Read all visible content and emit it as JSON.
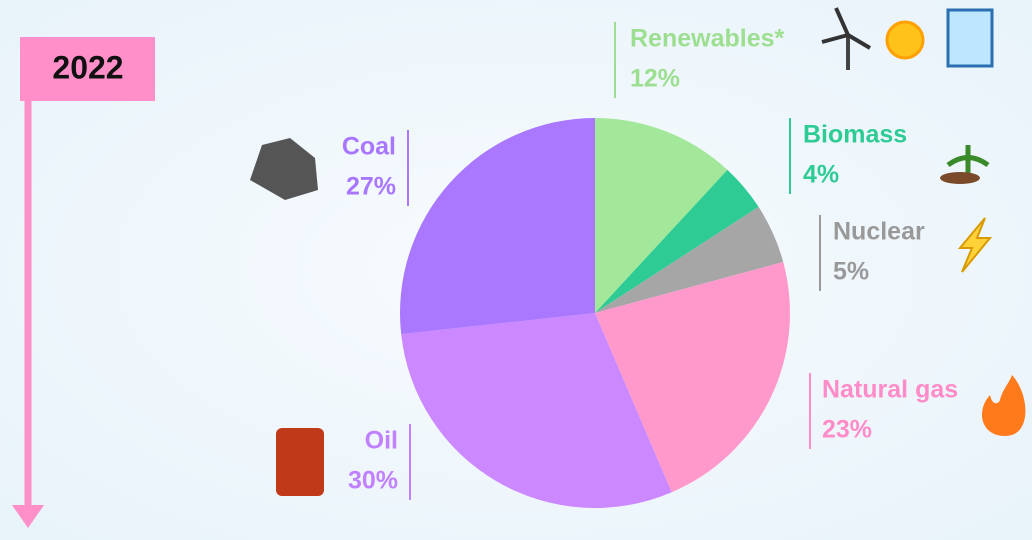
{
  "chart_data": {
    "type": "pie",
    "title": "2022",
    "categories": [
      "Renewables*",
      "Biomass",
      "Nuclear",
      "Natural gas",
      "Oil",
      "Coal"
    ],
    "values": [
      12,
      4,
      5,
      23,
      30,
      27
    ],
    "value_labels": [
      "12%",
      "4%",
      "5%",
      "23%",
      "30%",
      "27%"
    ],
    "colors": [
      "#a3e89a",
      "#2ecc94",
      "#a6a6a6",
      "#ff99cc",
      "#cc88ff",
      "#aa77ff"
    ]
  }
}
